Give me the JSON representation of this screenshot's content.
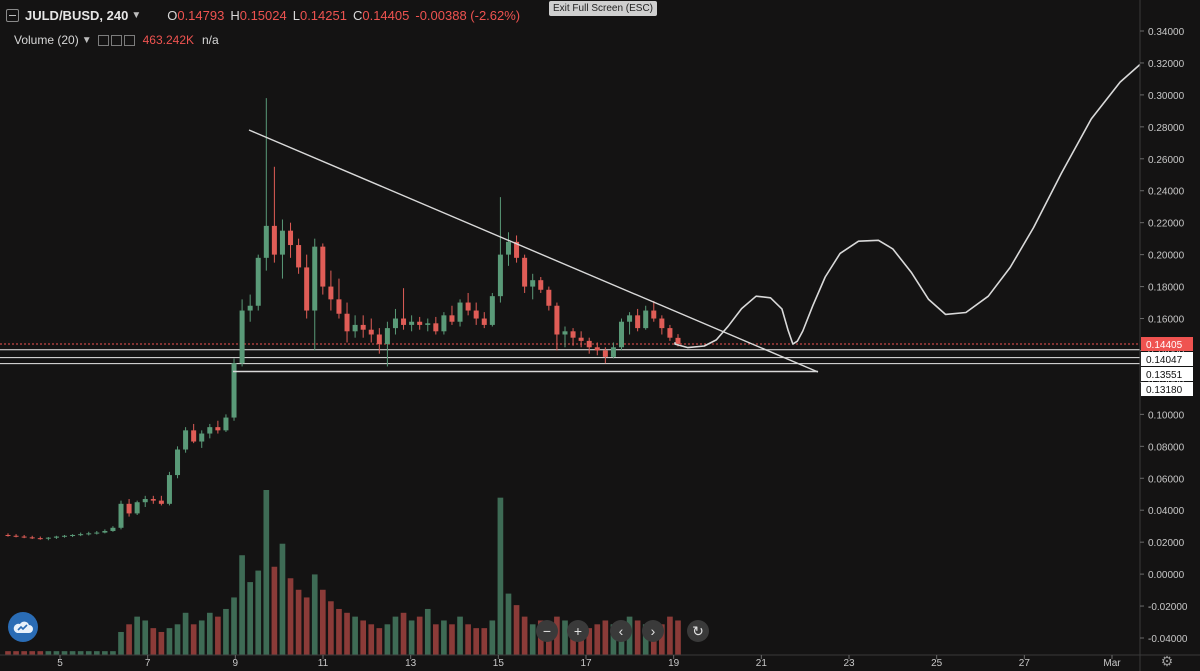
{
  "legend": {
    "symbol": "JULD/BUSD, 240",
    "open_label": "O",
    "open": "0.14793",
    "high_label": "H",
    "high": "0.15024",
    "low_label": "L",
    "low": "0.14251",
    "close_label": "C",
    "close": "0.14405",
    "change": "-0.00388 (-2.62%)",
    "volume_label": "Volume (20)",
    "volume_value": "463.242K",
    "volume_na": "n/a"
  },
  "exit_fullscreen_label": "Exit Full Screen (ESC)",
  "colors": {
    "background": "#141313",
    "up": "#5a9a78",
    "down": "#e05d57",
    "volume_up": "#3e6b55",
    "volume_down": "#8b3b38",
    "drawing": "#d9d9d9",
    "price_line": "#ef5350"
  },
  "nav_buttons": [
    "−",
    "+",
    "‹",
    "›",
    "↻"
  ],
  "icons": {
    "logo": "tradingview-cloud-icon",
    "zoom_out": "minus-icon",
    "zoom_in": "plus-icon",
    "scroll_left": "chevron-left-icon",
    "scroll_right": "chevron-right-icon",
    "reset": "refresh-icon",
    "settings": "gear-icon"
  },
  "chart_data": {
    "type": "candlestick",
    "xlabel": "",
    "ylabel": "",
    "x_tick_labels": [
      "5",
      "7",
      "9",
      "11",
      "13",
      "15",
      "17",
      "19",
      "21",
      "23",
      "25",
      "27",
      "Mar"
    ],
    "y_tick_labels": [
      "0.34000",
      "0.32000",
      "0.30000",
      "0.28000",
      "0.26000",
      "0.24000",
      "0.22000",
      "0.20000",
      "0.18000",
      "0.16000",
      "0.14000",
      "0.12000",
      "0.10000",
      "0.08000",
      "0.06000",
      "0.04000",
      "0.02000",
      "0.00000",
      "-0.02000",
      "-0.04000"
    ],
    "ylim": [
      -0.045,
      0.345
    ],
    "price_labels": {
      "current": "0.14405",
      "level1": "0.14047",
      "level2": "0.13551",
      "level3": "0.13180"
    },
    "horizontal_levels": [
      0.14405,
      0.14047,
      0.13551,
      0.1318
    ],
    "candles": [
      [
        0.0245,
        0.0255,
        0.0235,
        0.024
      ],
      [
        0.024,
        0.025,
        0.023,
        0.0235
      ],
      [
        0.0235,
        0.0245,
        0.0225,
        0.023
      ],
      [
        0.023,
        0.024,
        0.022,
        0.0225
      ],
      [
        0.0225,
        0.0235,
        0.0215,
        0.0222
      ],
      [
        0.0222,
        0.0232,
        0.0212,
        0.0228
      ],
      [
        0.0228,
        0.024,
        0.022,
        0.0235
      ],
      [
        0.0235,
        0.0245,
        0.0228,
        0.024
      ],
      [
        0.024,
        0.025,
        0.0232,
        0.0245
      ],
      [
        0.0245,
        0.026,
        0.0238,
        0.025
      ],
      [
        0.025,
        0.0265,
        0.0242,
        0.0255
      ],
      [
        0.0255,
        0.027,
        0.0248,
        0.026
      ],
      [
        0.026,
        0.028,
        0.0255,
        0.027
      ],
      [
        0.027,
        0.03,
        0.0265,
        0.029
      ],
      [
        0.029,
        0.046,
        0.028,
        0.044
      ],
      [
        0.044,
        0.047,
        0.036,
        0.038
      ],
      [
        0.038,
        0.046,
        0.037,
        0.045
      ],
      [
        0.045,
        0.049,
        0.042,
        0.047
      ],
      [
        0.047,
        0.049,
        0.044,
        0.046
      ],
      [
        0.046,
        0.049,
        0.043,
        0.044
      ],
      [
        0.044,
        0.064,
        0.043,
        0.062
      ],
      [
        0.062,
        0.08,
        0.06,
        0.078
      ],
      [
        0.078,
        0.092,
        0.076,
        0.09
      ],
      [
        0.09,
        0.094,
        0.082,
        0.083
      ],
      [
        0.083,
        0.09,
        0.079,
        0.088
      ],
      [
        0.088,
        0.094,
        0.085,
        0.092
      ],
      [
        0.092,
        0.096,
        0.088,
        0.09
      ],
      [
        0.09,
        0.1,
        0.089,
        0.098
      ],
      [
        0.098,
        0.135,
        0.096,
        0.132
      ],
      [
        0.132,
        0.172,
        0.13,
        0.165
      ],
      [
        0.165,
        0.175,
        0.158,
        0.168
      ],
      [
        0.168,
        0.2,
        0.165,
        0.198
      ],
      [
        0.198,
        0.298,
        0.19,
        0.218
      ],
      [
        0.218,
        0.255,
        0.195,
        0.2
      ],
      [
        0.2,
        0.222,
        0.185,
        0.215
      ],
      [
        0.215,
        0.22,
        0.198,
        0.206
      ],
      [
        0.206,
        0.21,
        0.188,
        0.192
      ],
      [
        0.192,
        0.2,
        0.16,
        0.165
      ],
      [
        0.165,
        0.21,
        0.14,
        0.205
      ],
      [
        0.205,
        0.207,
        0.175,
        0.18
      ],
      [
        0.18,
        0.19,
        0.165,
        0.172
      ],
      [
        0.172,
        0.185,
        0.16,
        0.163
      ],
      [
        0.163,
        0.17,
        0.145,
        0.152
      ],
      [
        0.152,
        0.162,
        0.148,
        0.156
      ],
      [
        0.156,
        0.162,
        0.148,
        0.153
      ],
      [
        0.153,
        0.16,
        0.145,
        0.15
      ],
      [
        0.15,
        0.154,
        0.138,
        0.144
      ],
      [
        0.144,
        0.158,
        0.13,
        0.154
      ],
      [
        0.154,
        0.166,
        0.15,
        0.16
      ],
      [
        0.16,
        0.179,
        0.153,
        0.156
      ],
      [
        0.156,
        0.162,
        0.152,
        0.158
      ],
      [
        0.158,
        0.161,
        0.153,
        0.156
      ],
      [
        0.156,
        0.16,
        0.152,
        0.157
      ],
      [
        0.157,
        0.161,
        0.15,
        0.152
      ],
      [
        0.152,
        0.164,
        0.15,
        0.162
      ],
      [
        0.162,
        0.168,
        0.156,
        0.158
      ],
      [
        0.158,
        0.172,
        0.155,
        0.17
      ],
      [
        0.17,
        0.176,
        0.162,
        0.165
      ],
      [
        0.165,
        0.17,
        0.156,
        0.16
      ],
      [
        0.16,
        0.164,
        0.154,
        0.156
      ],
      [
        0.156,
        0.176,
        0.155,
        0.174
      ],
      [
        0.174,
        0.236,
        0.17,
        0.2
      ],
      [
        0.2,
        0.214,
        0.193,
        0.208
      ],
      [
        0.208,
        0.212,
        0.195,
        0.198
      ],
      [
        0.198,
        0.2,
        0.176,
        0.18
      ],
      [
        0.18,
        0.188,
        0.172,
        0.184
      ],
      [
        0.184,
        0.186,
        0.176,
        0.178
      ],
      [
        0.178,
        0.18,
        0.165,
        0.168
      ],
      [
        0.168,
        0.17,
        0.14,
        0.15
      ],
      [
        0.15,
        0.155,
        0.142,
        0.152
      ],
      [
        0.152,
        0.154,
        0.143,
        0.148
      ],
      [
        0.148,
        0.152,
        0.142,
        0.146
      ],
      [
        0.146,
        0.148,
        0.138,
        0.142
      ],
      [
        0.142,
        0.145,
        0.137,
        0.14
      ],
      [
        0.14,
        0.142,
        0.132,
        0.136
      ],
      [
        0.136,
        0.145,
        0.135,
        0.142
      ],
      [
        0.142,
        0.16,
        0.14,
        0.158
      ],
      [
        0.158,
        0.164,
        0.15,
        0.162
      ],
      [
        0.162,
        0.166,
        0.152,
        0.154
      ],
      [
        0.154,
        0.168,
        0.153,
        0.165
      ],
      [
        0.165,
        0.171,
        0.158,
        0.16
      ],
      [
        0.16,
        0.162,
        0.15,
        0.154
      ],
      [
        0.154,
        0.156,
        0.146,
        0.148
      ],
      [
        0.1479,
        0.1502,
        0.1425,
        0.1441
      ]
    ],
    "volumes": [
      0.002,
      0.002,
      0.002,
      0.002,
      0.002,
      0.002,
      0.002,
      0.002,
      0.002,
      0.002,
      0.002,
      0.002,
      0.002,
      0.002,
      0.012,
      0.016,
      0.02,
      0.018,
      0.014,
      0.012,
      0.014,
      0.016,
      0.022,
      0.016,
      0.018,
      0.022,
      0.02,
      0.024,
      0.03,
      0.052,
      0.038,
      0.044,
      0.086,
      0.046,
      0.058,
      0.04,
      0.034,
      0.03,
      0.042,
      0.034,
      0.028,
      0.024,
      0.022,
      0.02,
      0.018,
      0.016,
      0.014,
      0.016,
      0.02,
      0.022,
      0.018,
      0.02,
      0.024,
      0.016,
      0.018,
      0.016,
      0.02,
      0.016,
      0.014,
      0.014,
      0.018,
      0.082,
      0.032,
      0.026,
      0.02,
      0.016,
      0.018,
      0.016,
      0.02,
      0.018,
      0.016,
      0.016,
      0.014,
      0.016,
      0.018,
      0.016,
      0.018,
      0.02,
      0.018,
      0.016,
      0.014,
      0.016,
      0.02,
      0.018
    ],
    "projection_curve": [
      [
        0.1515,
        0.1452
      ],
      [
        0.1515,
        0.144
      ],
      [
        0.1541,
        0.1418
      ],
      [
        0.1574,
        0.1428
      ],
      [
        0.1598,
        0.1466
      ],
      [
        0.1622,
        0.1552
      ],
      [
        0.1649,
        0.1662
      ],
      [
        0.1678,
        0.174
      ],
      [
        0.1707,
        0.173
      ],
      [
        0.173,
        0.166
      ],
      [
        0.1742,
        0.153
      ],
      [
        0.1752,
        0.144
      ],
      [
        0.1761,
        0.1458
      ],
      [
        0.1772,
        0.1522
      ],
      [
        0.1792,
        0.168
      ],
      [
        0.1817,
        0.186
      ],
      [
        0.1847,
        0.2008
      ],
      [
        0.1884,
        0.2084
      ],
      [
        0.1924,
        0.209
      ],
      [
        0.1953,
        0.2036
      ],
      [
        0.199,
        0.189
      ],
      [
        0.2025,
        0.172
      ],
      [
        0.2059,
        0.1626
      ],
      [
        0.21,
        0.1638
      ],
      [
        0.2145,
        0.174
      ],
      [
        0.2189,
        0.192
      ],
      [
        0.2236,
        0.217
      ],
      [
        0.2292,
        0.251
      ],
      [
        0.2352,
        0.285
      ],
      [
        0.241,
        0.308
      ],
      [
        0.245,
        0.319
      ]
    ]
  }
}
